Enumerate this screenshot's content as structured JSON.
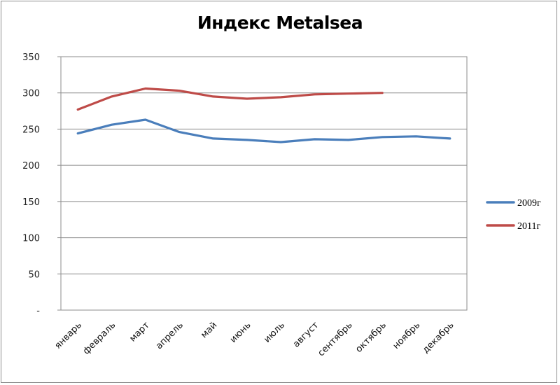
{
  "chart_data": {
    "type": "line",
    "title": "Индекс Metalsea",
    "xlabel": "",
    "ylabel": "",
    "ylim": [
      0,
      350
    ],
    "y_ticks": [
      "-",
      "50",
      "100",
      "150",
      "200",
      "250",
      "300",
      "350"
    ],
    "y_tick_values": [
      0,
      50,
      100,
      150,
      200,
      250,
      300,
      350
    ],
    "grid": true,
    "legend_position": "right",
    "categories": [
      "январь",
      "февраль",
      "март",
      "апрель",
      "май",
      "июнь",
      "июль",
      "август",
      "сентябрь",
      "октябрь",
      "ноябрь",
      "декабрь"
    ],
    "series": [
      {
        "name": "2009г",
        "color": "#4a7ebb",
        "values": [
          244,
          256,
          263,
          246,
          237,
          235,
          232,
          236,
          235,
          239,
          240,
          237
        ]
      },
      {
        "name": "2011г",
        "color": "#be4b48",
        "values": [
          277,
          295,
          306,
          303,
          295,
          292,
          294,
          298,
          299,
          300,
          null,
          null
        ]
      }
    ]
  }
}
